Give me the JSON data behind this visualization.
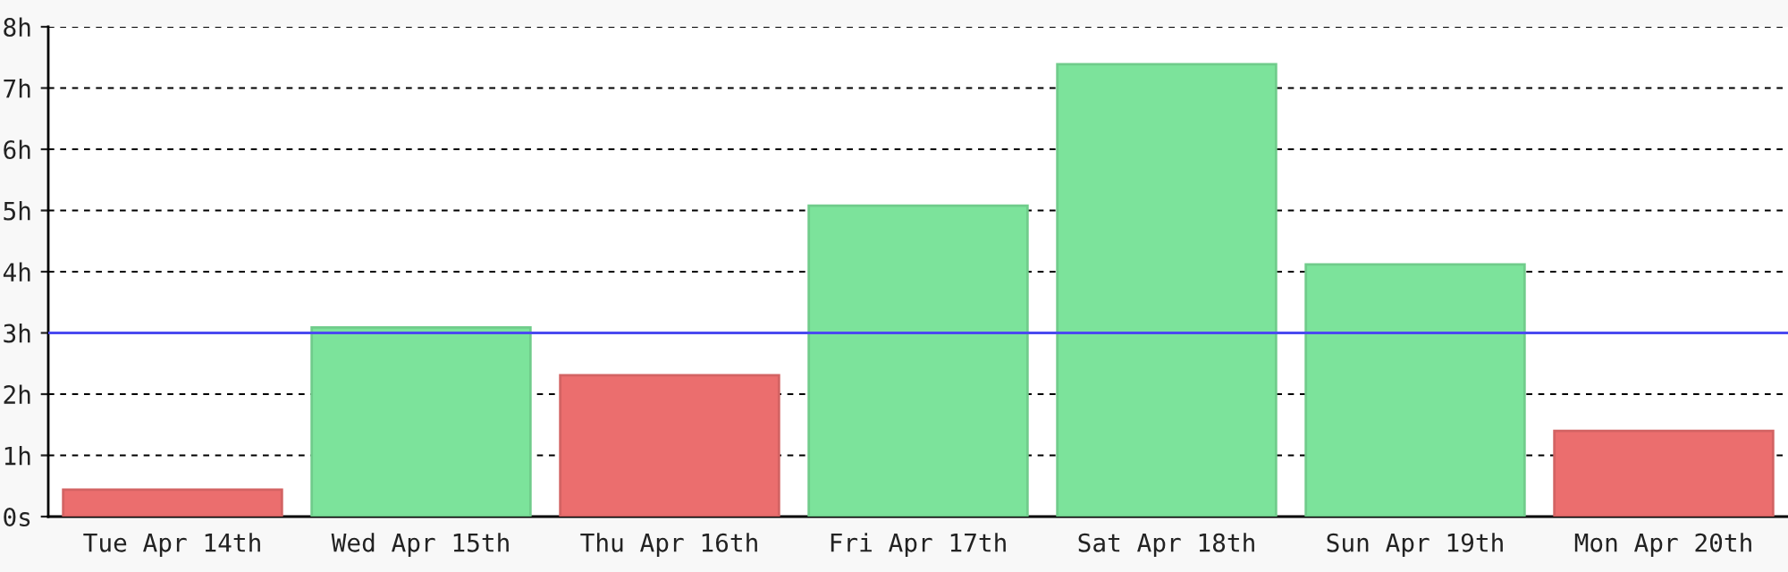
{
  "chart_data": {
    "type": "bar",
    "categories": [
      "Tue Apr 14th",
      "Wed Apr 15th",
      "Thu Apr 16th",
      "Fri Apr 17th",
      "Sat Apr 18th",
      "Sun Apr 19th",
      "Mon Apr 20th"
    ],
    "values": [
      0.44,
      3.09,
      2.31,
      5.08,
      7.39,
      4.12,
      1.4
    ],
    "colors": [
      "#eb6e6e",
      "#7ce39b",
      "#eb6e6e",
      "#7ce39b",
      "#7ce39b",
      "#7ce39b",
      "#eb6e6e"
    ],
    "ylim": [
      0,
      8
    ],
    "yticks": [
      {
        "value": 0,
        "label": "0s"
      },
      {
        "value": 1,
        "label": "1h"
      },
      {
        "value": 2,
        "label": "2h"
      },
      {
        "value": 3,
        "label": "3h"
      },
      {
        "value": 4,
        "label": "4h"
      },
      {
        "value": 5,
        "label": "5h"
      },
      {
        "value": 6,
        "label": "6h"
      },
      {
        "value": 7,
        "label": "7h"
      },
      {
        "value": 8,
        "label": "8h"
      }
    ],
    "grid": "y",
    "ref_lines": [
      {
        "axis": "y",
        "value": 3,
        "color": "#4a4af0",
        "line_style": "solid"
      }
    ]
  }
}
